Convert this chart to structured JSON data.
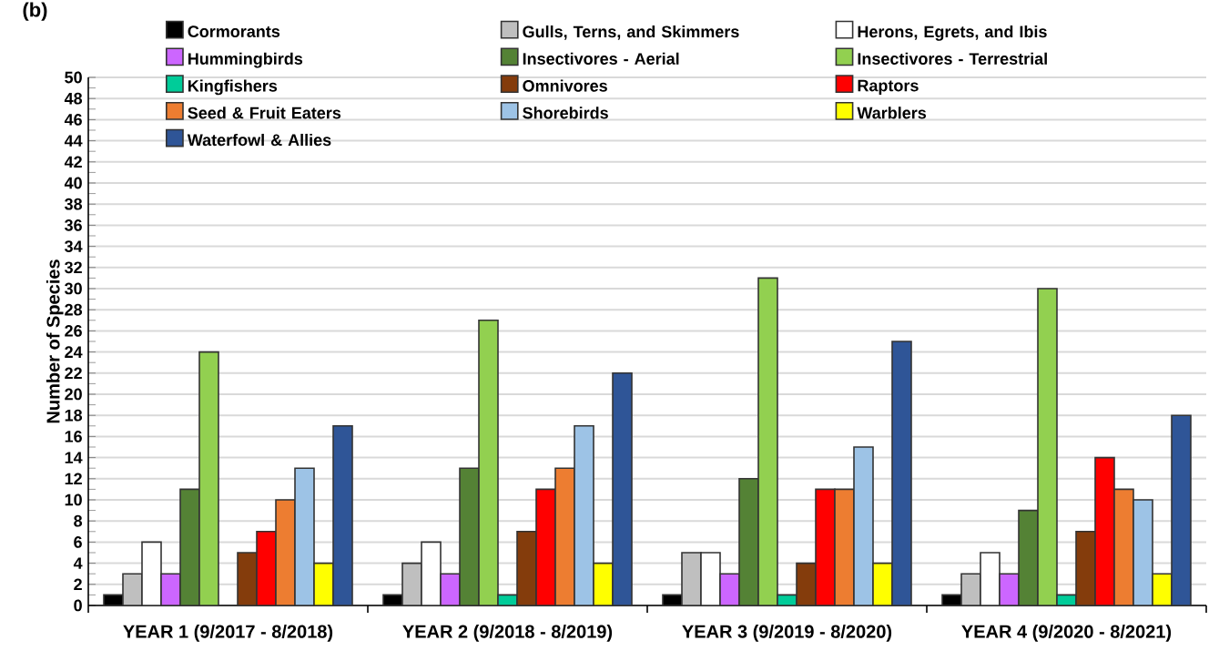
{
  "chart_data": {
    "type": "bar",
    "ylabel": "Number of Species",
    "categories": [
      "YEAR 1 (9/2017 - 8/2018)",
      "YEAR 2 (9/2018 - 8/2019)",
      "YEAR 3 (9/2019 - 8/2020)",
      "YEAR 4 (9/2020 - 8/2021)"
    ],
    "series": [
      {
        "name": "Cormorants",
        "color": "#000000",
        "values": [
          1,
          1,
          1,
          1
        ]
      },
      {
        "name": "Gulls, Terns, and Skimmers",
        "color": "#bfbfbf",
        "values": [
          3,
          4,
          5,
          3
        ]
      },
      {
        "name": "Herons, Egrets, and Ibis",
        "color": "#ffffff",
        "values": [
          6,
          6,
          5,
          5
        ]
      },
      {
        "name": "Hummingbirds",
        "color": "#cc66ff",
        "values": [
          3,
          3,
          3,
          3
        ]
      },
      {
        "name": "Insectivores - Aerial",
        "color": "#548235",
        "values": [
          11,
          13,
          12,
          9
        ]
      },
      {
        "name": "Insectivores - Terrestrial",
        "color": "#92d050",
        "values": [
          24,
          27,
          31,
          30
        ]
      },
      {
        "name": "Kingfishers",
        "color": "#00cc99",
        "values": [
          null,
          1,
          1,
          1
        ]
      },
      {
        "name": "Omnivores",
        "color": "#843c0c",
        "values": [
          5,
          7,
          4,
          7
        ]
      },
      {
        "name": "Raptors",
        "color": "#ff0000",
        "values": [
          7,
          11,
          11,
          14
        ]
      },
      {
        "name": "Seed & Fruit Eaters",
        "color": "#ed7d31",
        "values": [
          10,
          13,
          11,
          11
        ]
      },
      {
        "name": "Shorebirds",
        "color": "#9dc3e6",
        "values": [
          13,
          17,
          15,
          10
        ]
      },
      {
        "name": "Warblers",
        "color": "#ffff00",
        "values": [
          4,
          4,
          4,
          3
        ]
      },
      {
        "name": "Waterfowl & Allies",
        "color": "#2f5597",
        "values": [
          17,
          22,
          25,
          18
        ]
      }
    ],
    "ylim": [
      0,
      50
    ],
    "yticks": [
      0,
      2,
      4,
      6,
      8,
      10,
      12,
      14,
      16,
      18,
      20,
      22,
      24,
      26,
      28,
      30,
      32,
      34,
      36,
      38,
      40,
      42,
      44,
      46,
      48,
      50
    ],
    "grid": "y",
    "legend": "top",
    "annotations": [
      "(b)"
    ]
  }
}
